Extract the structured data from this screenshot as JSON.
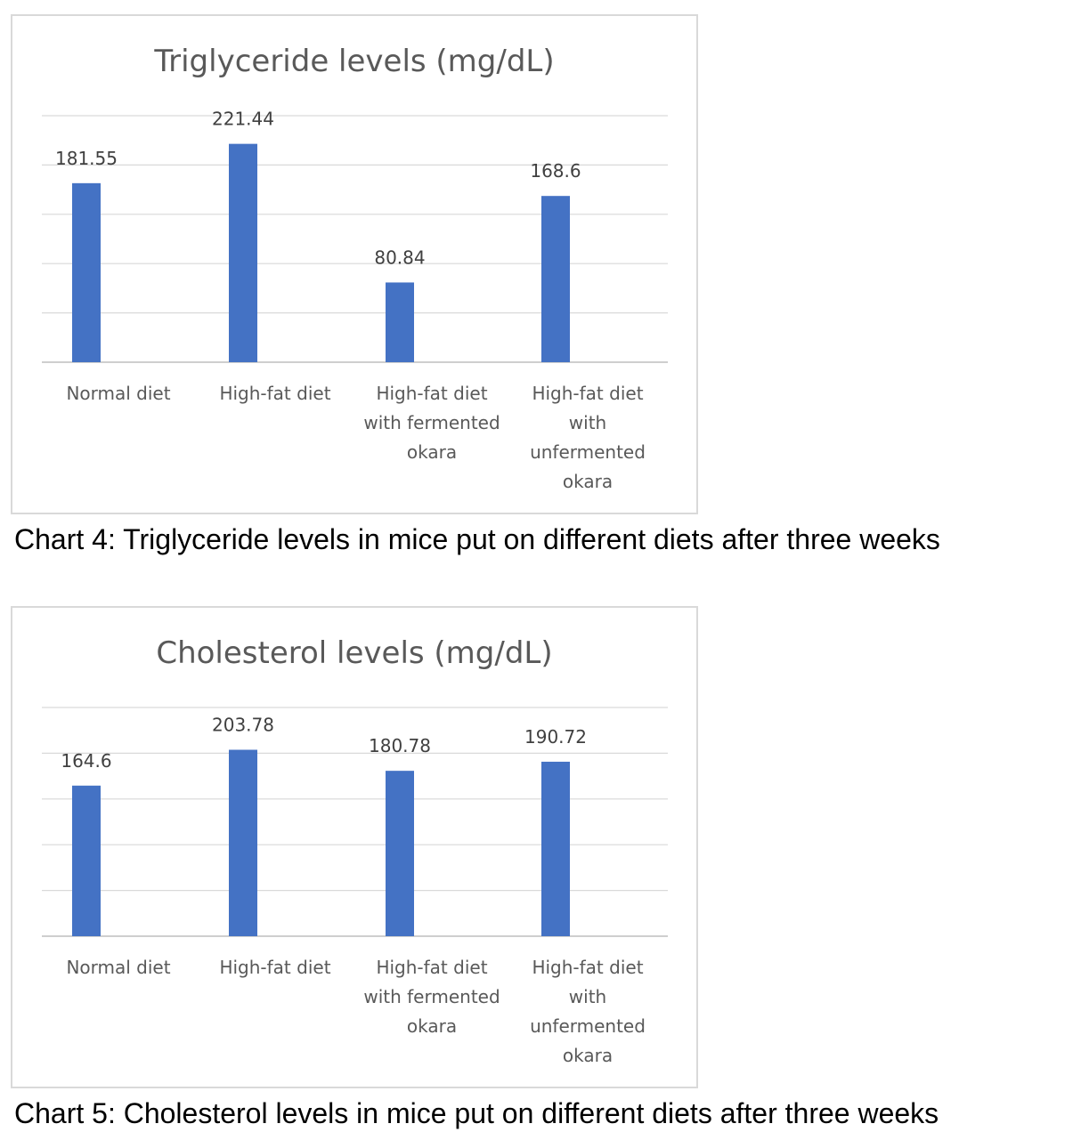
{
  "chart_data": [
    {
      "type": "bar",
      "title": "Triglyceride levels (mg/dL)",
      "categories": [
        [
          "Normal diet"
        ],
        [
          "High-fat diet"
        ],
        [
          "High-fat diet",
          "with fermented",
          "okara"
        ],
        [
          "High-fat diet",
          "with",
          "unfermented",
          "okara"
        ]
      ],
      "values": [
        181.55,
        221.44,
        80.84,
        168.6
      ],
      "data_labels": [
        "181.55",
        "221.44",
        "80.84",
        "168.6"
      ],
      "ylim": [
        0,
        250
      ],
      "grid": true,
      "bar_color": "#4472C4",
      "caption": "Chart 4: Triglyceride levels in mice put on different diets after three weeks"
    },
    {
      "type": "bar",
      "title": "Cholesterol levels (mg/dL)",
      "categories": [
        [
          "Normal diet"
        ],
        [
          "High-fat diet"
        ],
        [
          "High-fat diet",
          "with fermented",
          "okara"
        ],
        [
          "High-fat diet",
          "with",
          "unfermented",
          "okara"
        ]
      ],
      "values": [
        164.6,
        203.78,
        180.78,
        190.72
      ],
      "data_labels": [
        "164.6",
        "203.78",
        "180.78",
        "190.72"
      ],
      "ylim": [
        0,
        250
      ],
      "grid": true,
      "bar_color": "#4472C4",
      "caption": "Chart 5: Cholesterol levels in mice put on different diets after three weeks"
    }
  ]
}
